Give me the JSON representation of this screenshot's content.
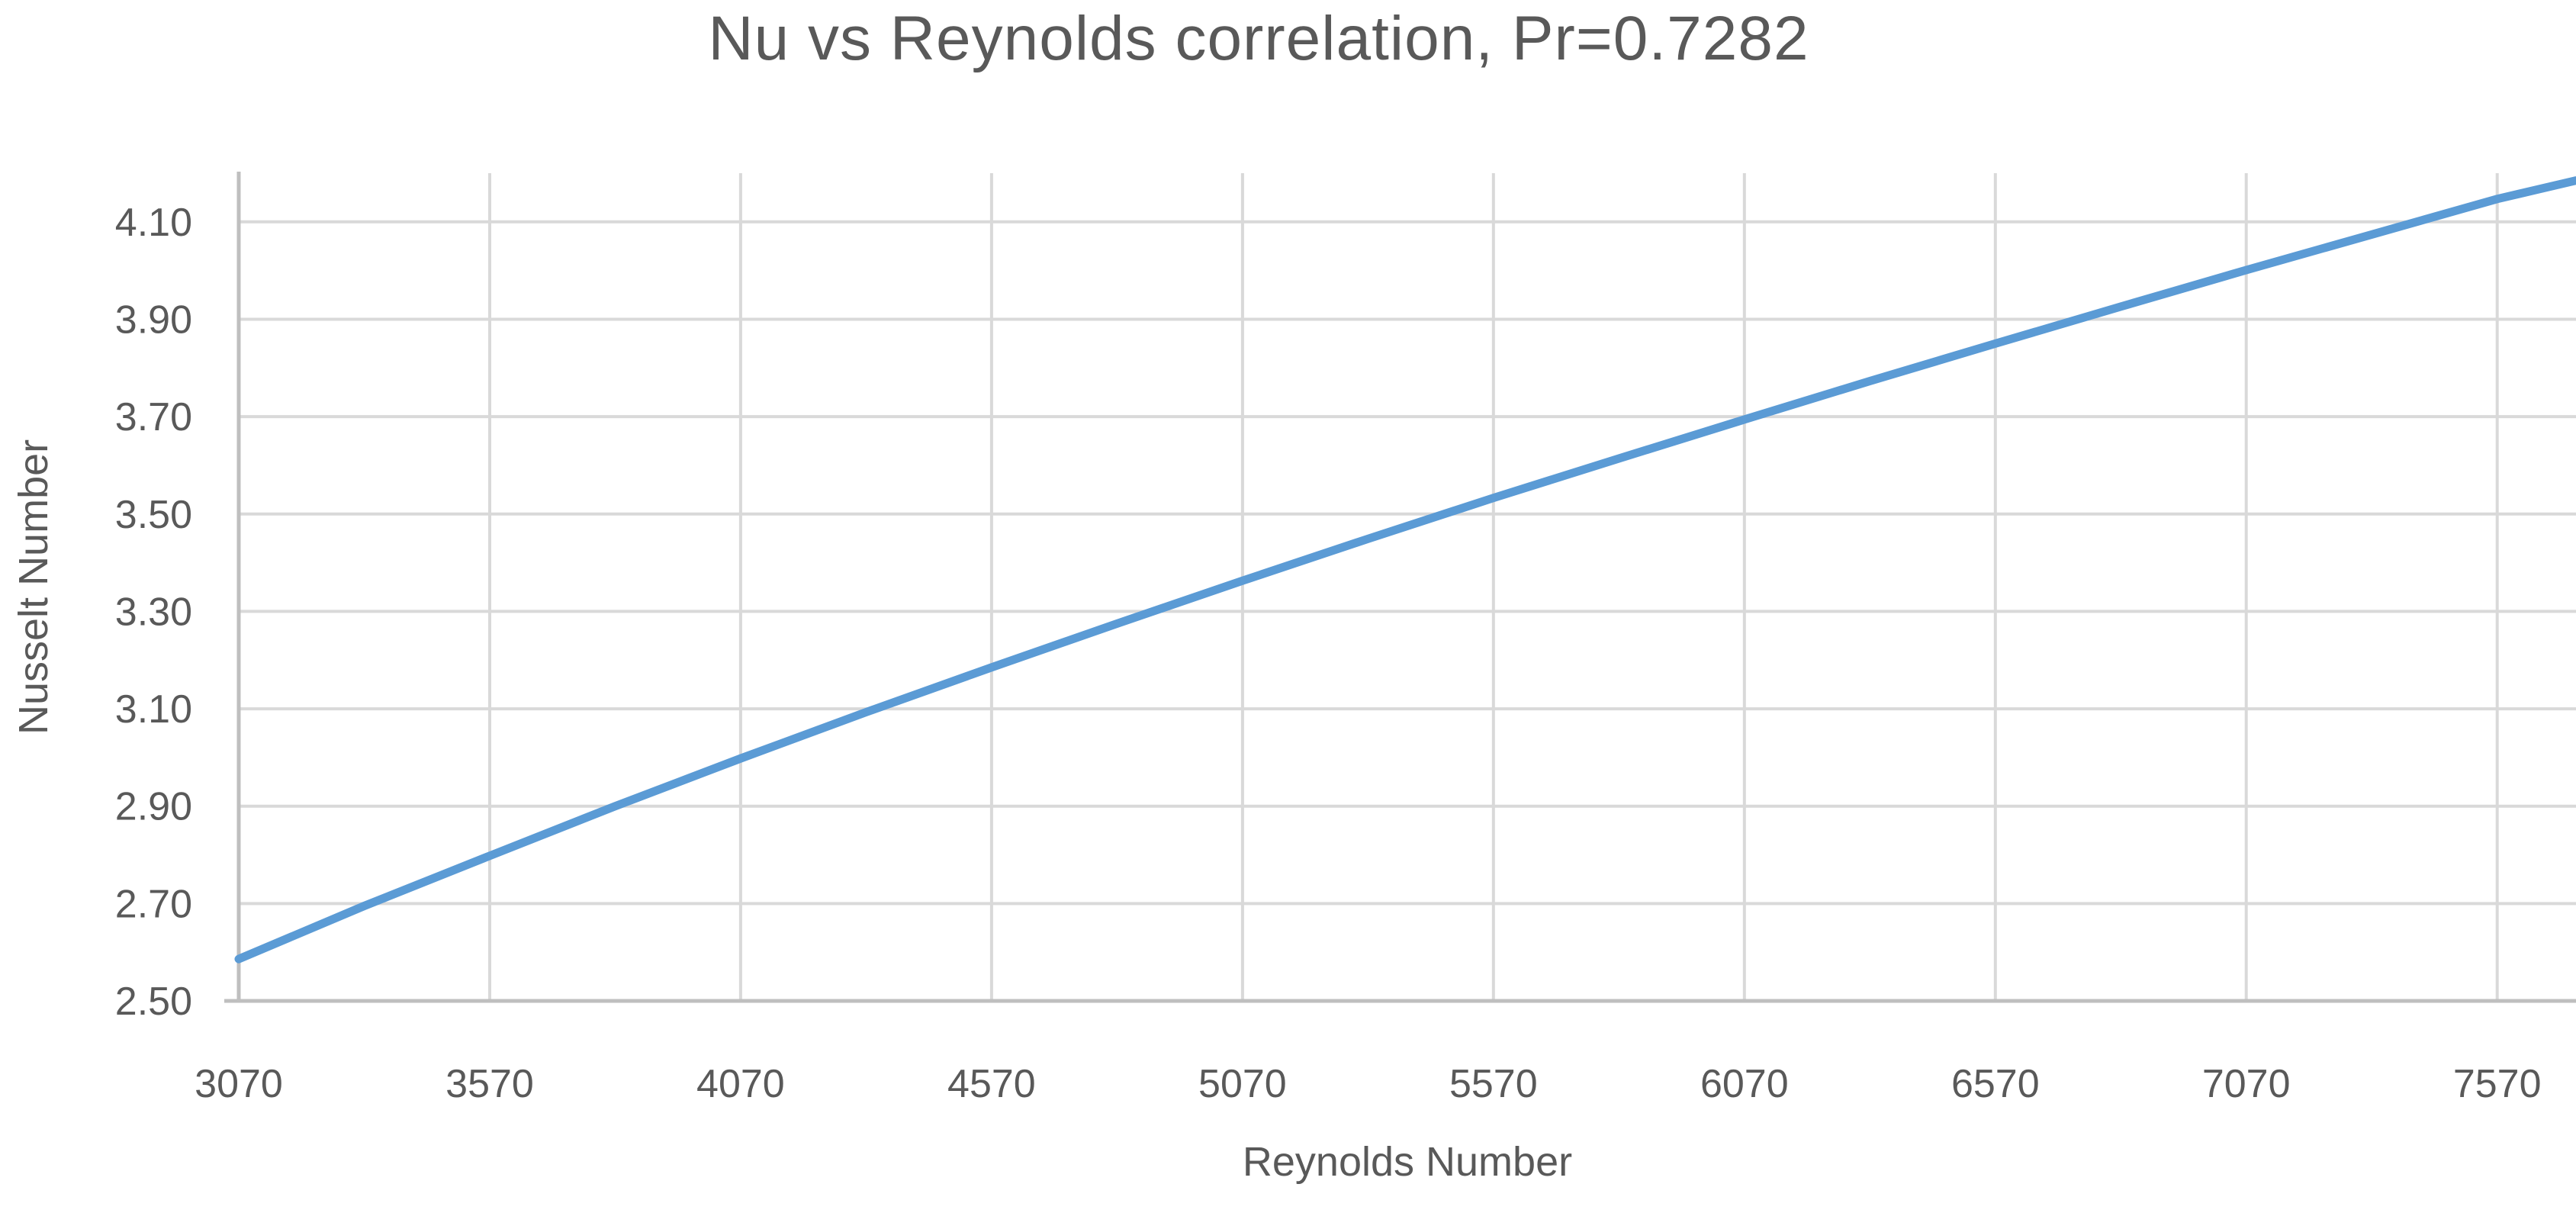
{
  "chart_data": {
    "type": "line",
    "title": "Nu vs Reynolds correlation, Pr=0.7282",
    "xlabel": "Reynolds Number",
    "ylabel": "Nusselt Number",
    "xlim": [
      3070,
      7727
    ],
    "ylim": [
      2.5,
      4.2
    ],
    "x_ticks": [
      3070,
      3570,
      4070,
      4570,
      5070,
      5570,
      6070,
      6570,
      7070,
      7570
    ],
    "y_ticks": [
      "4.10",
      "3.90",
      "3.70",
      "3.50",
      "3.30",
      "3.10",
      "2.90",
      "2.70",
      "2.50"
    ],
    "grid": true,
    "legend": false,
    "series": [
      {
        "name": "Nu",
        "color": "#5B9BD5",
        "points": [
          [
            3070,
            2.586
          ],
          [
            3320,
            2.695
          ],
          [
            3570,
            2.798
          ],
          [
            3820,
            2.9
          ],
          [
            4070,
            2.998
          ],
          [
            4320,
            3.093
          ],
          [
            4570,
            3.185
          ],
          [
            4820,
            3.275
          ],
          [
            5070,
            3.363
          ],
          [
            5320,
            3.449
          ],
          [
            5570,
            3.533
          ],
          [
            5820,
            3.614
          ],
          [
            6070,
            3.694
          ],
          [
            6320,
            3.773
          ],
          [
            6570,
            3.85
          ],
          [
            6820,
            3.926
          ],
          [
            7070,
            4.001
          ],
          [
            7320,
            4.074
          ],
          [
            7570,
            4.147
          ],
          [
            7727,
            4.185
          ]
        ]
      }
    ]
  },
  "style": {
    "series_color": "#5B9BD5",
    "grid_color": "#D9D9D9",
    "axis_color": "#BFBFBF",
    "text_color": "#595959",
    "background": "#FFFFFF"
  }
}
